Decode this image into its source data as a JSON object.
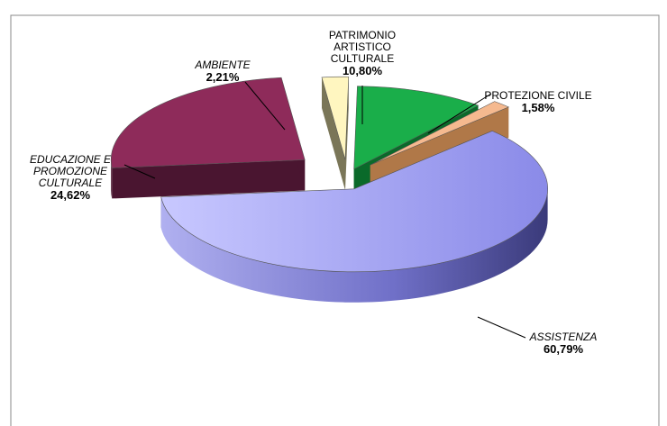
{
  "chart_data": {
    "type": "pie",
    "title": "",
    "slices": [
      {
        "label_lines": [
          "PATRIMONIO",
          "ARTISTICO",
          "CULTURALE"
        ],
        "value_text": "10,80%",
        "value": 10.8,
        "color": "#1aae4a",
        "dark": "#0a6a2a",
        "italic": false
      },
      {
        "label_lines": [
          "PROTEZIONE CIVILE"
        ],
        "value_text": "1,58%",
        "value": 1.58,
        "color": "#f5b98f",
        "dark": "#b07848",
        "italic": false
      },
      {
        "label_lines": [
          "ASSISTENZA"
        ],
        "value_text": "60,79%",
        "value": 60.79,
        "color": "#9b9bf8",
        "dark": "#545499",
        "italic": true
      },
      {
        "label_lines": [
          "EDUCAZIONE E",
          "PROMOZIONE",
          "CULTURALE"
        ],
        "value_text": "24,62%",
        "value": 24.62,
        "color": "#8e2b5a",
        "dark": "#4a1530",
        "italic": true
      },
      {
        "label_lines": [
          "AMBIENTE"
        ],
        "value_text": "2,21%",
        "value": 2.21,
        "color": "#fff6c0",
        "dark": "#7a7658",
        "italic": true
      }
    ],
    "legend": "none",
    "style": "exploded-3d"
  }
}
